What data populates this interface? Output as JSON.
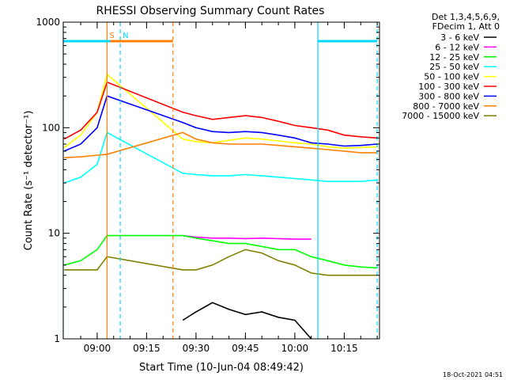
{
  "chart_data": {
    "type": "line",
    "title": "RHESSI Observing Summary Count Rates",
    "xlabel": "Start Time (10-Jun-04 08:49:42)",
    "ylabel": "Count Rate (s⁻¹ detector⁻¹)",
    "yscale": "log",
    "ylim": [
      1,
      1000
    ],
    "xlim_minutes_after_start": [
      0,
      42.9
    ],
    "x_unit_note": "x values are clock times HH:MM on 10-Jun-04",
    "x_ticks": [
      "09:00",
      "09:15",
      "09:30",
      "09:45",
      "10:00",
      "10:15"
    ],
    "y_ticks": [
      "1",
      "10",
      "100",
      "1000"
    ],
    "legend_header": [
      "Det 1,3,4,5,6,9,",
      "FDecim 1, Att 0"
    ],
    "legend_position": "right",
    "series": [
      {
        "name": "3 - 6 keV",
        "color": "#000000",
        "x": [
          "09:26",
          "09:30",
          "09:35",
          "09:40",
          "09:45",
          "09:50",
          "09:55",
          "10:00",
          "10:05"
        ],
        "y": [
          1.5,
          1.8,
          2.2,
          1.9,
          1.7,
          1.8,
          1.6,
          1.5,
          1.0
        ]
      },
      {
        "name": "6 - 12 keV",
        "color": "#ff00ff",
        "x": [
          "09:26",
          "09:30",
          "09:35",
          "09:40",
          "09:45",
          "09:50",
          "09:55",
          "10:00",
          "10:05"
        ],
        "y": [
          9.5,
          9.2,
          9.0,
          9.0,
          8.9,
          9.0,
          8.9,
          8.8,
          8.8
        ]
      },
      {
        "name": "12 - 25 keV",
        "color": "#00ff00",
        "x": [
          "08:50",
          "08:55",
          "09:00",
          "09:03",
          "09:26",
          "09:30",
          "09:35",
          "09:40",
          "09:45",
          "09:50",
          "09:55",
          "10:00",
          "10:05",
          "10:10",
          "10:15",
          "10:20",
          "10:25"
        ],
        "y": [
          5.0,
          5.5,
          7.0,
          9.5,
          9.5,
          9.0,
          8.5,
          8.0,
          8.0,
          7.5,
          7.0,
          7.0,
          6.0,
          5.5,
          5.0,
          4.8,
          4.7
        ]
      },
      {
        "name": "25 - 50 keV",
        "color": "#00ffff",
        "x": [
          "08:50",
          "08:55",
          "09:00",
          "09:03",
          "09:26",
          "09:30",
          "09:35",
          "09:40",
          "09:45",
          "09:50",
          "09:55",
          "10:00",
          "10:05",
          "10:10",
          "10:15",
          "10:20",
          "10:25"
        ],
        "y": [
          30,
          34,
          45,
          90,
          37,
          36,
          35,
          35,
          36,
          35,
          34,
          33,
          32,
          31,
          31,
          31,
          32
        ]
      },
      {
        "name": "50 - 100 keV",
        "color": "#ffff00",
        "x": [
          "08:50",
          "08:55",
          "09:00",
          "09:03",
          "09:26",
          "09:30",
          "09:35",
          "09:40",
          "09:45",
          "09:50",
          "09:55",
          "10:00",
          "10:05",
          "10:10",
          "10:15",
          "10:20",
          "10:25"
        ],
        "y": [
          65,
          85,
          140,
          320,
          78,
          74,
          72,
          76,
          80,
          78,
          75,
          72,
          70,
          66,
          64,
          65,
          66
        ]
      },
      {
        "name": "100 - 300 keV",
        "color": "#ff0000",
        "x": [
          "08:50",
          "08:55",
          "09:00",
          "09:03",
          "09:26",
          "09:30",
          "09:35",
          "09:40",
          "09:45",
          "09:50",
          "09:55",
          "10:00",
          "10:05",
          "10:10",
          "10:15",
          "10:20",
          "10:25"
        ],
        "y": [
          78,
          95,
          140,
          270,
          140,
          130,
          120,
          125,
          130,
          125,
          115,
          105,
          100,
          95,
          85,
          82,
          80
        ]
      },
      {
        "name": "300 - 800 keV",
        "color": "#0000ff",
        "x": [
          "08:50",
          "08:55",
          "09:00",
          "09:03",
          "09:26",
          "09:30",
          "09:35",
          "09:40",
          "09:45",
          "09:50",
          "09:55",
          "10:00",
          "10:05",
          "10:10",
          "10:15",
          "10:20",
          "10:25"
        ],
        "y": [
          60,
          70,
          100,
          200,
          112,
          100,
          92,
          90,
          92,
          90,
          85,
          80,
          72,
          70,
          67,
          68,
          70
        ]
      },
      {
        "name": "800 - 7000 keV",
        "color": "#ff8000",
        "x": [
          "08:50",
          "08:55",
          "09:00",
          "09:03",
          "09:26",
          "09:30",
          "09:35",
          "09:40",
          "09:45",
          "09:50",
          "09:55",
          "10:00",
          "10:05",
          "10:10",
          "10:15",
          "10:20",
          "10:25"
        ],
        "y": [
          52,
          53,
          55,
          56,
          90,
          78,
          72,
          70,
          70,
          70,
          68,
          66,
          64,
          62,
          60,
          58,
          58
        ]
      },
      {
        "name": "7000 - 15000 keV",
        "color": "#808000",
        "x": [
          "08:50",
          "08:55",
          "09:00",
          "09:03",
          "09:26",
          "09:30",
          "09:35",
          "09:40",
          "09:45",
          "09:50",
          "09:55",
          "10:00",
          "10:05",
          "10:10",
          "10:15",
          "10:20",
          "10:25"
        ],
        "y": [
          4.5,
          4.5,
          4.5,
          6.0,
          4.5,
          4.5,
          5.0,
          6.0,
          7.0,
          6.5,
          5.5,
          5.0,
          4.2,
          4.0,
          4.0,
          4.0,
          4.0
        ]
      }
    ],
    "intervals": [
      {
        "label": "S",
        "color": "#ff8000",
        "y": 660,
        "from": "09:03",
        "to": "09:04"
      },
      {
        "label": "",
        "color": "#ff8000",
        "y": 660,
        "from": "09:04",
        "to": "09:23"
      },
      {
        "label": "",
        "color": "#00d8ff",
        "y": 660,
        "from": "08:49:42",
        "to": "09:04"
      },
      {
        "label": "N",
        "color": "#00d8ff",
        "y": 660,
        "from": "09:07",
        "to": "09:07"
      },
      {
        "label": "",
        "color": "#00d8ff",
        "y": 660,
        "from": "10:07",
        "to": "10:25"
      }
    ],
    "vertical_markers": [
      {
        "color": "#00d8ff",
        "style": "solid",
        "x": "08:49:42"
      },
      {
        "color": "#00d8ff",
        "style": "dashed",
        "x": "09:07"
      },
      {
        "color": "#ff8000",
        "style": "solid",
        "x": "09:03"
      },
      {
        "color": "#ff8000",
        "style": "dashed",
        "x": "09:23"
      },
      {
        "color": "#00d8ff",
        "style": "solid",
        "x": "10:07"
      },
      {
        "color": "#00d8ff",
        "style": "dashed",
        "x": "10:25"
      }
    ],
    "footer_timestamp": "18-Oct-2021 04:51"
  }
}
